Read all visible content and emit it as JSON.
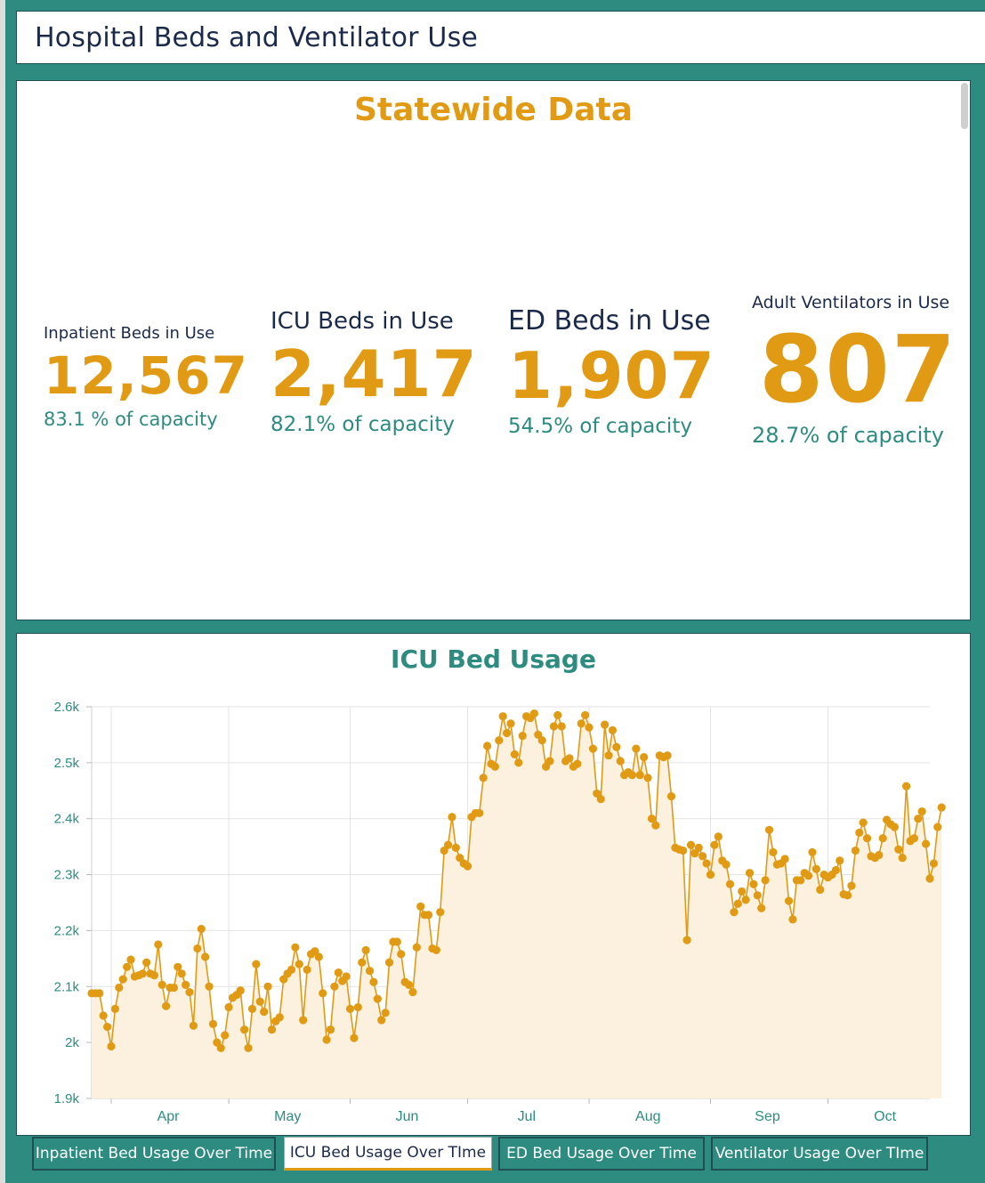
{
  "header": {
    "title": "Hospital Beds and Ventilator Use"
  },
  "stats": {
    "title": "Statewide Data",
    "items": [
      {
        "label": "Inpatient Beds in Use",
        "value": "12,567",
        "capacity": "83.1 % of capacity"
      },
      {
        "label": "ICU Beds in Use",
        "value": "2,417",
        "capacity": "82.1% of capacity"
      },
      {
        "label": "ED Beds in Use",
        "value": "1,907",
        "capacity": "54.5% of capacity"
      },
      {
        "label": "Adult Ventilators in Use",
        "value": "807",
        "capacity": "28.7% of capacity"
      }
    ]
  },
  "chart_panel": {
    "title": "ICU Bed Usage"
  },
  "colors": {
    "accent_orange": "#e19a13",
    "teal": "#2e8b80",
    "navy": "#1b2a4a",
    "area_fill": "#fbf1de"
  },
  "chart_data": {
    "type": "line",
    "title": "ICU Bed Usage",
    "xlabel": "",
    "ylabel": "",
    "ylim": [
      1900,
      2600
    ],
    "yticks": [
      1900,
      2000,
      2100,
      2200,
      2300,
      2400,
      2500,
      2600
    ],
    "ytick_labels": [
      "1.9k",
      "2k",
      "2.1k",
      "2.2k",
      "2.3k",
      "2.4k",
      "2.5k",
      "2.6k"
    ],
    "x_start": "2020-03-27",
    "x_end": "2020-10-27",
    "xtick_labels": [
      {
        "label": "Apr",
        "date": "2020-04-01"
      },
      {
        "label": "May",
        "date": "2020-05-01"
      },
      {
        "label": "Jun",
        "date": "2020-06-01"
      },
      {
        "label": "Jul",
        "date": "2020-07-01"
      },
      {
        "label": "Aug",
        "date": "2020-08-01"
      },
      {
        "label": "Sep",
        "date": "2020-09-01"
      },
      {
        "label": "Oct",
        "date": "2020-10-01"
      }
    ],
    "area_fill": true,
    "grid": true,
    "series": [
      {
        "color": "#e19a13",
        "start_date": "2020-03-27",
        "values": [
          2088,
          2088,
          2088,
          2048,
          2028,
          1993,
          2060,
          2098,
          2113,
          2135,
          2148,
          2118,
          2120,
          2123,
          2143,
          2123,
          2120,
          2175,
          2103,
          2065,
          2098,
          2098,
          2135,
          2123,
          2103,
          2090,
          2030,
          2168,
          2203,
          2153,
          2100,
          2033,
          2000,
          1990,
          2013,
          2063,
          2080,
          2085,
          2093,
          2023,
          1990,
          2060,
          2140,
          2073,
          2055,
          2100,
          2023,
          2038,
          2045,
          2113,
          2123,
          2130,
          2170,
          2140,
          2040,
          2130,
          2158,
          2163,
          2153,
          2088,
          2005,
          2023,
          2100,
          2125,
          2110,
          2118,
          2060,
          2008,
          2063,
          2143,
          2165,
          2128,
          2108,
          2078,
          2040,
          2053,
          2143,
          2180,
          2180,
          2158,
          2108,
          2103,
          2090,
          2170,
          2243,
          2228,
          2228,
          2168,
          2165,
          2233,
          2343,
          2353,
          2403,
          2348,
          2330,
          2320,
          2315,
          2403,
          2410,
          2410,
          2473,
          2530,
          2498,
          2493,
          2540,
          2583,
          2553,
          2570,
          2515,
          2500,
          2548,
          2583,
          2580,
          2588,
          2550,
          2540,
          2493,
          2503,
          2565,
          2585,
          2565,
          2503,
          2508,
          2493,
          2498,
          2570,
          2585,
          2563,
          2525,
          2445,
          2435,
          2568,
          2513,
          2558,
          2528,
          2503,
          2478,
          2483,
          2478,
          2525,
          2478,
          2510,
          2473,
          2400,
          2388,
          2513,
          2510,
          2513,
          2440,
          2348,
          2345,
          2343,
          2183,
          2353,
          2338,
          2348,
          2333,
          2320,
          2300,
          2353,
          2368,
          2325,
          2318,
          2283,
          2233,
          2248,
          2270,
          2255,
          2303,
          2283,
          2263,
          2240,
          2290,
          2380,
          2340,
          2318,
          2320,
          2328,
          2253,
          2220,
          2290,
          2290,
          2303,
          2298,
          2340,
          2310,
          2273,
          2300,
          2295,
          2300,
          2308,
          2325,
          2265,
          2263,
          2280,
          2343,
          2375,
          2393,
          2365,
          2333,
          2330,
          2335,
          2365,
          2398,
          2390,
          2385,
          2345,
          2330,
          2458,
          2360,
          2365,
          2400,
          2413,
          2355,
          2293,
          2320,
          2385,
          2420
        ]
      }
    ]
  },
  "tabs": [
    {
      "label": "Inpatient Bed Usage Over Time",
      "active": false
    },
    {
      "label": "ICU Bed Usage Over TIme",
      "active": true
    },
    {
      "label": "ED Bed Usage Over Time",
      "active": false
    },
    {
      "label": "Ventilator Usage Over TIme",
      "active": false
    }
  ]
}
